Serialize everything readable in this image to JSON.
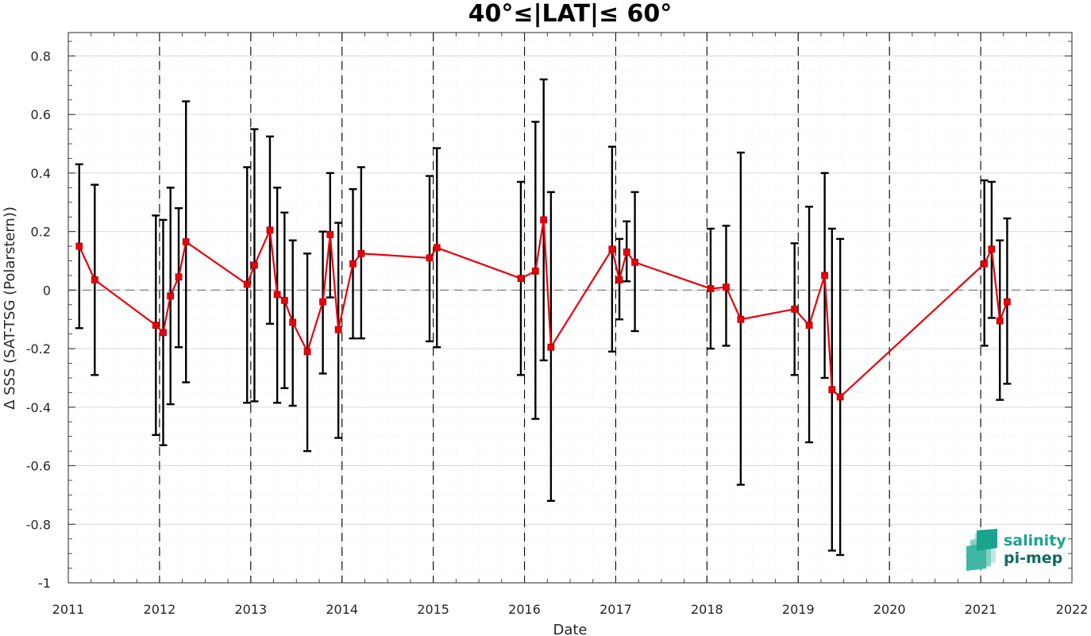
{
  "chart_data": {
    "type": "line",
    "title": "40°≤|LAT|≤ 60°",
    "xlabel": "Date",
    "ylabel": "Δ SSS (SAT-TSG (Polarstern))",
    "xlim": [
      2011,
      2022
    ],
    "ylim": [
      -1,
      0.88
    ],
    "x_ticks": [
      "2011",
      "2012",
      "2013",
      "2014",
      "2015",
      "2016",
      "2017",
      "2018",
      "2019",
      "2020",
      "2021",
      "2022"
    ],
    "y_ticks": [
      "0.8",
      "0.6",
      "0.4",
      "0.2",
      "0",
      "-0.2",
      "-0.4",
      "-0.6",
      "-0.8",
      "-1"
    ],
    "grid": true,
    "zero_line": 0,
    "year_separators": [
      2012,
      2013,
      2014,
      2015,
      2016,
      2017,
      2018,
      2019,
      2020,
      2021
    ],
    "colors": {
      "series": "#e8000b",
      "errorbar": "#000000",
      "logo_primary": "#1aa38f",
      "logo_dark": "#0e6b5e"
    },
    "series": [
      {
        "name": "",
        "points": [
          {
            "x": 2011.12,
            "y": 0.15,
            "lo": -0.13,
            "hi": 0.43
          },
          {
            "x": 2011.29,
            "y": 0.035,
            "lo": -0.29,
            "hi": 0.36
          },
          {
            "x": 2011.96,
            "y": -0.12,
            "lo": -0.495,
            "hi": 0.255
          },
          {
            "x": 2012.04,
            "y": -0.145,
            "lo": -0.53,
            "hi": 0.24
          },
          {
            "x": 2012.12,
            "y": -0.02,
            "lo": -0.39,
            "hi": 0.35
          },
          {
            "x": 2012.21,
            "y": 0.045,
            "lo": -0.195,
            "hi": 0.28
          },
          {
            "x": 2012.29,
            "y": 0.165,
            "lo": -0.315,
            "hi": 0.645
          },
          {
            "x": 2012.96,
            "y": 0.02,
            "lo": -0.385,
            "hi": 0.42
          },
          {
            "x": 2013.04,
            "y": 0.085,
            "lo": -0.38,
            "hi": 0.55
          },
          {
            "x": 2013.21,
            "y": 0.205,
            "lo": -0.115,
            "hi": 0.525
          },
          {
            "x": 2013.29,
            "y": -0.015,
            "lo": -0.385,
            "hi": 0.35
          },
          {
            "x": 2013.37,
            "y": -0.035,
            "lo": -0.335,
            "hi": 0.265
          },
          {
            "x": 2013.46,
            "y": -0.11,
            "lo": -0.395,
            "hi": 0.17
          },
          {
            "x": 2013.62,
            "y": -0.21,
            "lo": -0.55,
            "hi": 0.125
          },
          {
            "x": 2013.79,
            "y": -0.04,
            "lo": -0.285,
            "hi": 0.2
          },
          {
            "x": 2013.87,
            "y": 0.19,
            "lo": -0.025,
            "hi": 0.4
          },
          {
            "x": 2013.96,
            "y": -0.135,
            "lo": -0.505,
            "hi": 0.23
          },
          {
            "x": 2014.12,
            "y": 0.09,
            "lo": -0.165,
            "hi": 0.345
          },
          {
            "x": 2014.21,
            "y": 0.125,
            "lo": -0.165,
            "hi": 0.42
          },
          {
            "x": 2014.96,
            "y": 0.11,
            "lo": -0.175,
            "hi": 0.39
          },
          {
            "x": 2015.04,
            "y": 0.145,
            "lo": -0.195,
            "hi": 0.485
          },
          {
            "x": 2015.96,
            "y": 0.04,
            "lo": -0.29,
            "hi": 0.37
          },
          {
            "x": 2016.12,
            "y": 0.065,
            "lo": -0.44,
            "hi": 0.575
          },
          {
            "x": 2016.21,
            "y": 0.24,
            "lo": -0.24,
            "hi": 0.72
          },
          {
            "x": 2016.29,
            "y": -0.195,
            "lo": -0.72,
            "hi": 0.335
          },
          {
            "x": 2016.96,
            "y": 0.14,
            "lo": -0.21,
            "hi": 0.49
          },
          {
            "x": 2017.04,
            "y": 0.035,
            "lo": -0.1,
            "hi": 0.175
          },
          {
            "x": 2017.12,
            "y": 0.13,
            "lo": 0.03,
            "hi": 0.235
          },
          {
            "x": 2017.21,
            "y": 0.095,
            "lo": -0.14,
            "hi": 0.335
          },
          {
            "x": 2018.04,
            "y": 0.005,
            "lo": -0.2,
            "hi": 0.21
          },
          {
            "x": 2018.21,
            "y": 0.01,
            "lo": -0.19,
            "hi": 0.22
          },
          {
            "x": 2018.37,
            "y": -0.1,
            "lo": -0.665,
            "hi": 0.47
          },
          {
            "x": 2018.96,
            "y": -0.065,
            "lo": -0.29,
            "hi": 0.16
          },
          {
            "x": 2019.12,
            "y": -0.12,
            "lo": -0.52,
            "hi": 0.285
          },
          {
            "x": 2019.29,
            "y": 0.05,
            "lo": -0.3,
            "hi": 0.4
          },
          {
            "x": 2019.37,
            "y": -0.34,
            "lo": -0.89,
            "hi": 0.21
          },
          {
            "x": 2019.46,
            "y": -0.365,
            "lo": -0.905,
            "hi": 0.175
          },
          {
            "x": 2021.04,
            "y": 0.09,
            "lo": -0.19,
            "hi": 0.375
          },
          {
            "x": 2021.12,
            "y": 0.14,
            "lo": -0.095,
            "hi": 0.37
          },
          {
            "x": 2021.21,
            "y": -0.105,
            "lo": -0.375,
            "hi": 0.17
          },
          {
            "x": 2021.29,
            "y": -0.04,
            "lo": -0.32,
            "hi": 0.245
          }
        ]
      }
    ]
  },
  "logo": {
    "line1": "salinity",
    "line2": "pi-mep"
  }
}
